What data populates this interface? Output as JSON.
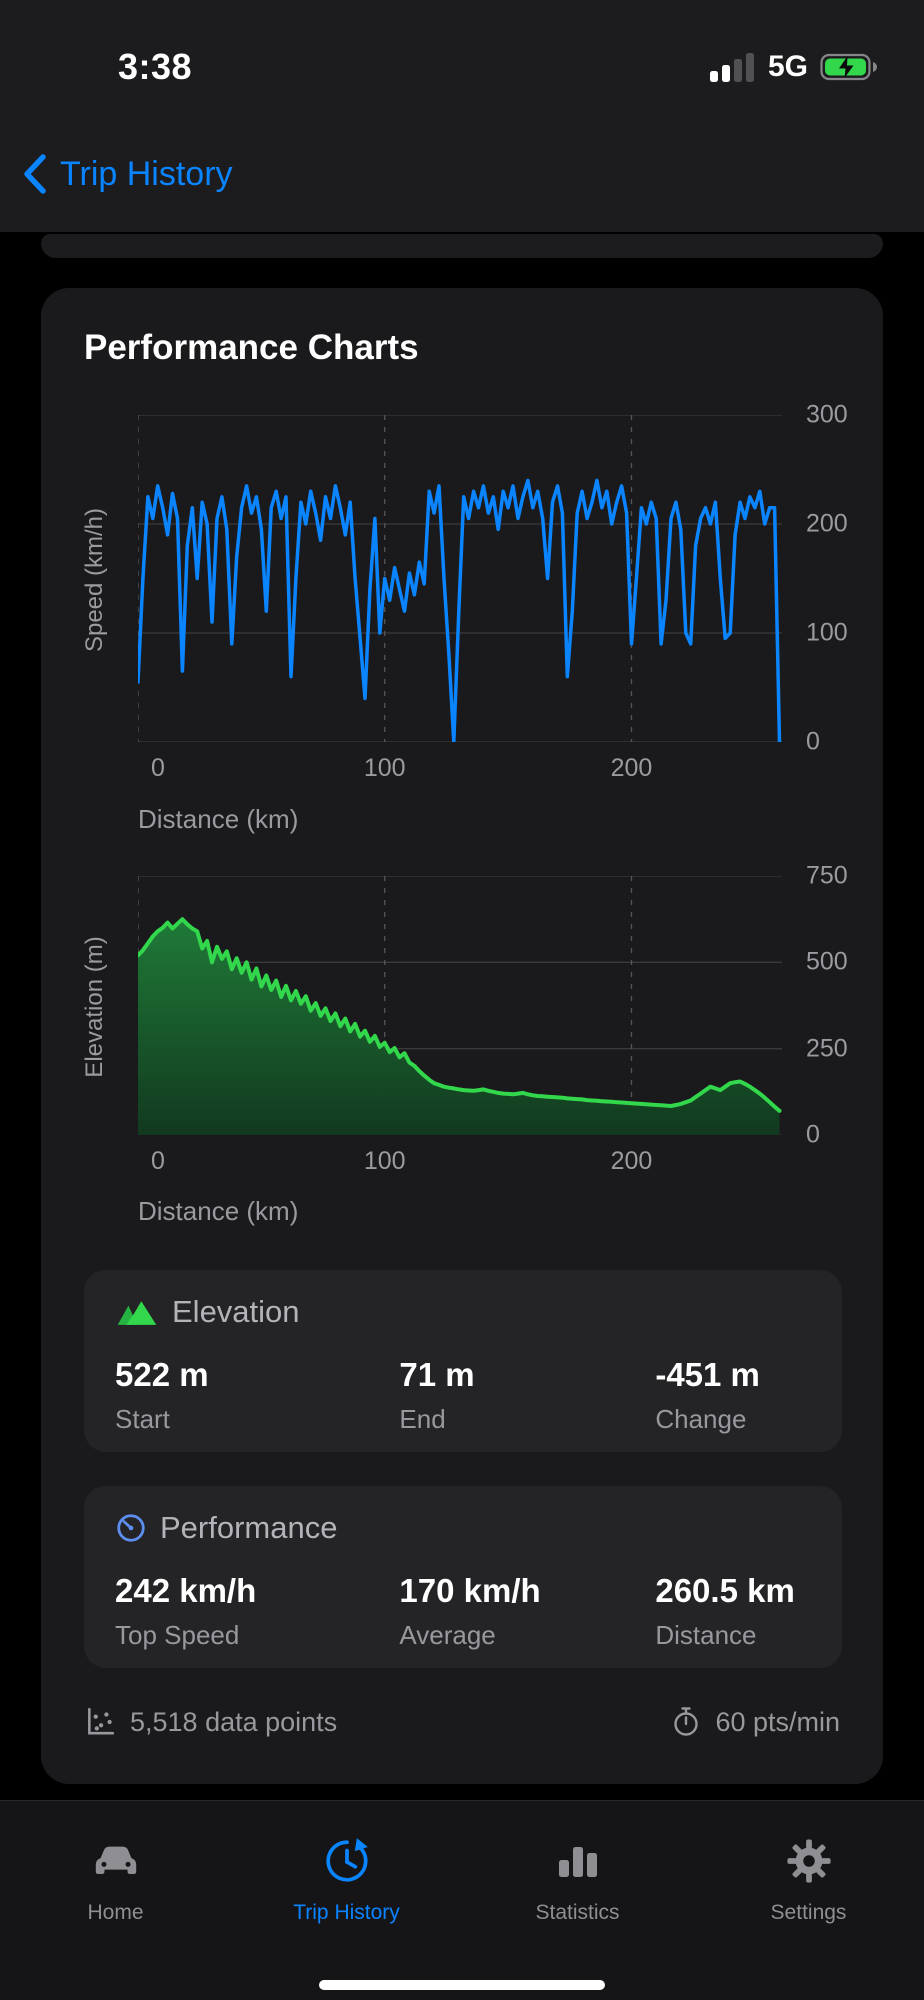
{
  "status_bar": {
    "time": "3:38",
    "network": "5G",
    "battery_charging": true,
    "signal_bars_lit": 2
  },
  "nav": {
    "back_label": "Trip History"
  },
  "card": {
    "title": "Performance Charts"
  },
  "chart_data": [
    {
      "type": "line",
      "name": "speed-profile",
      "ylabel": "Speed (km/h)",
      "xlabel": "Distance (km)",
      "xlim": [
        0,
        261
      ],
      "ylim": [
        0,
        300
      ],
      "yticks": [
        0,
        100,
        200,
        300
      ],
      "xticks": [
        0,
        100,
        200
      ],
      "color": "#0a84ff",
      "x_start": 0,
      "x_step": 2,
      "values": [
        55,
        150,
        225,
        205,
        235,
        215,
        190,
        228,
        205,
        65,
        180,
        215,
        150,
        220,
        200,
        110,
        205,
        225,
        195,
        90,
        170,
        215,
        235,
        210,
        225,
        195,
        120,
        215,
        230,
        205,
        225,
        60,
        150,
        220,
        200,
        230,
        210,
        185,
        225,
        205,
        235,
        215,
        190,
        220,
        150,
        95,
        40,
        140,
        205,
        100,
        150,
        130,
        160,
        140,
        120,
        155,
        135,
        165,
        145,
        230,
        210,
        235,
        150,
        80,
        0,
        120,
        225,
        205,
        230,
        215,
        235,
        210,
        225,
        195,
        230,
        215,
        235,
        205,
        225,
        240,
        215,
        230,
        205,
        150,
        220,
        235,
        210,
        60,
        120,
        210,
        230,
        205,
        220,
        240,
        215,
        230,
        200,
        220,
        235,
        210,
        90,
        150,
        215,
        200,
        220,
        205,
        90,
        130,
        205,
        220,
        195,
        100,
        90,
        180,
        205,
        215,
        200,
        220,
        150,
        95,
        100,
        190,
        220,
        205,
        225,
        215,
        230,
        200,
        215,
        215,
        0
      ]
    },
    {
      "type": "area",
      "name": "elevation-profile",
      "ylabel": "Elevation (m)",
      "xlabel": "Distance (km)",
      "xlim": [
        0,
        261
      ],
      "ylim": [
        0,
        750
      ],
      "yticks": [
        0,
        250,
        500,
        750
      ],
      "xticks": [
        0,
        100,
        200
      ],
      "color": "#32d74b",
      "fill_top": "#1f7a38",
      "fill_bottom": "#12391f",
      "x_start": 0,
      "x_step": 2,
      "values": [
        520,
        535,
        555,
        575,
        590,
        600,
        615,
        598,
        612,
        625,
        610,
        598,
        590,
        540,
        562,
        500,
        545,
        510,
        532,
        480,
        512,
        470,
        500,
        450,
        482,
        430,
        462,
        420,
        447,
        400,
        432,
        390,
        417,
        380,
        402,
        360,
        382,
        345,
        367,
        330,
        352,
        315,
        337,
        300,
        322,
        285,
        302,
        270,
        287,
        255,
        267,
        240,
        252,
        225,
        237,
        210,
        200,
        185,
        172,
        160,
        150,
        145,
        140,
        137,
        135,
        132,
        130,
        129,
        128,
        130,
        132,
        128,
        125,
        122,
        120,
        119,
        118,
        120,
        122,
        118,
        115,
        113,
        112,
        111,
        110,
        109,
        108,
        106,
        105,
        104,
        103,
        101,
        100,
        99,
        98,
        97,
        96,
        95,
        94,
        93,
        92,
        91,
        90,
        89,
        88,
        87,
        86,
        85,
        84,
        87,
        90,
        95,
        100,
        110,
        120,
        130,
        140,
        135,
        130,
        140,
        150,
        153,
        155,
        148,
        140,
        130,
        120,
        108,
        95,
        82,
        70
      ]
    }
  ],
  "elevation_card": {
    "title": "Elevation",
    "stats": [
      {
        "value": "522 m",
        "label": "Start"
      },
      {
        "value": "71 m",
        "label": "End"
      },
      {
        "value": "-451 m",
        "label": "Change"
      }
    ]
  },
  "performance_card": {
    "title": "Performance",
    "stats": [
      {
        "value": "242 km/h",
        "label": "Top Speed"
      },
      {
        "value": "170 km/h",
        "label": "Average"
      },
      {
        "value": "260.5 km",
        "label": "Distance"
      }
    ]
  },
  "footer": {
    "data_points": "5,518 data points",
    "rate": "60 pts/min"
  },
  "tab_bar": {
    "items": [
      {
        "label": "Home",
        "active": false
      },
      {
        "label": "Trip History",
        "active": true
      },
      {
        "label": "Statistics",
        "active": false
      },
      {
        "label": "Settings",
        "active": false
      }
    ]
  },
  "colors": {
    "accent_blue": "#0a84ff",
    "green": "#32d74b",
    "gray_text": "#98989e"
  }
}
